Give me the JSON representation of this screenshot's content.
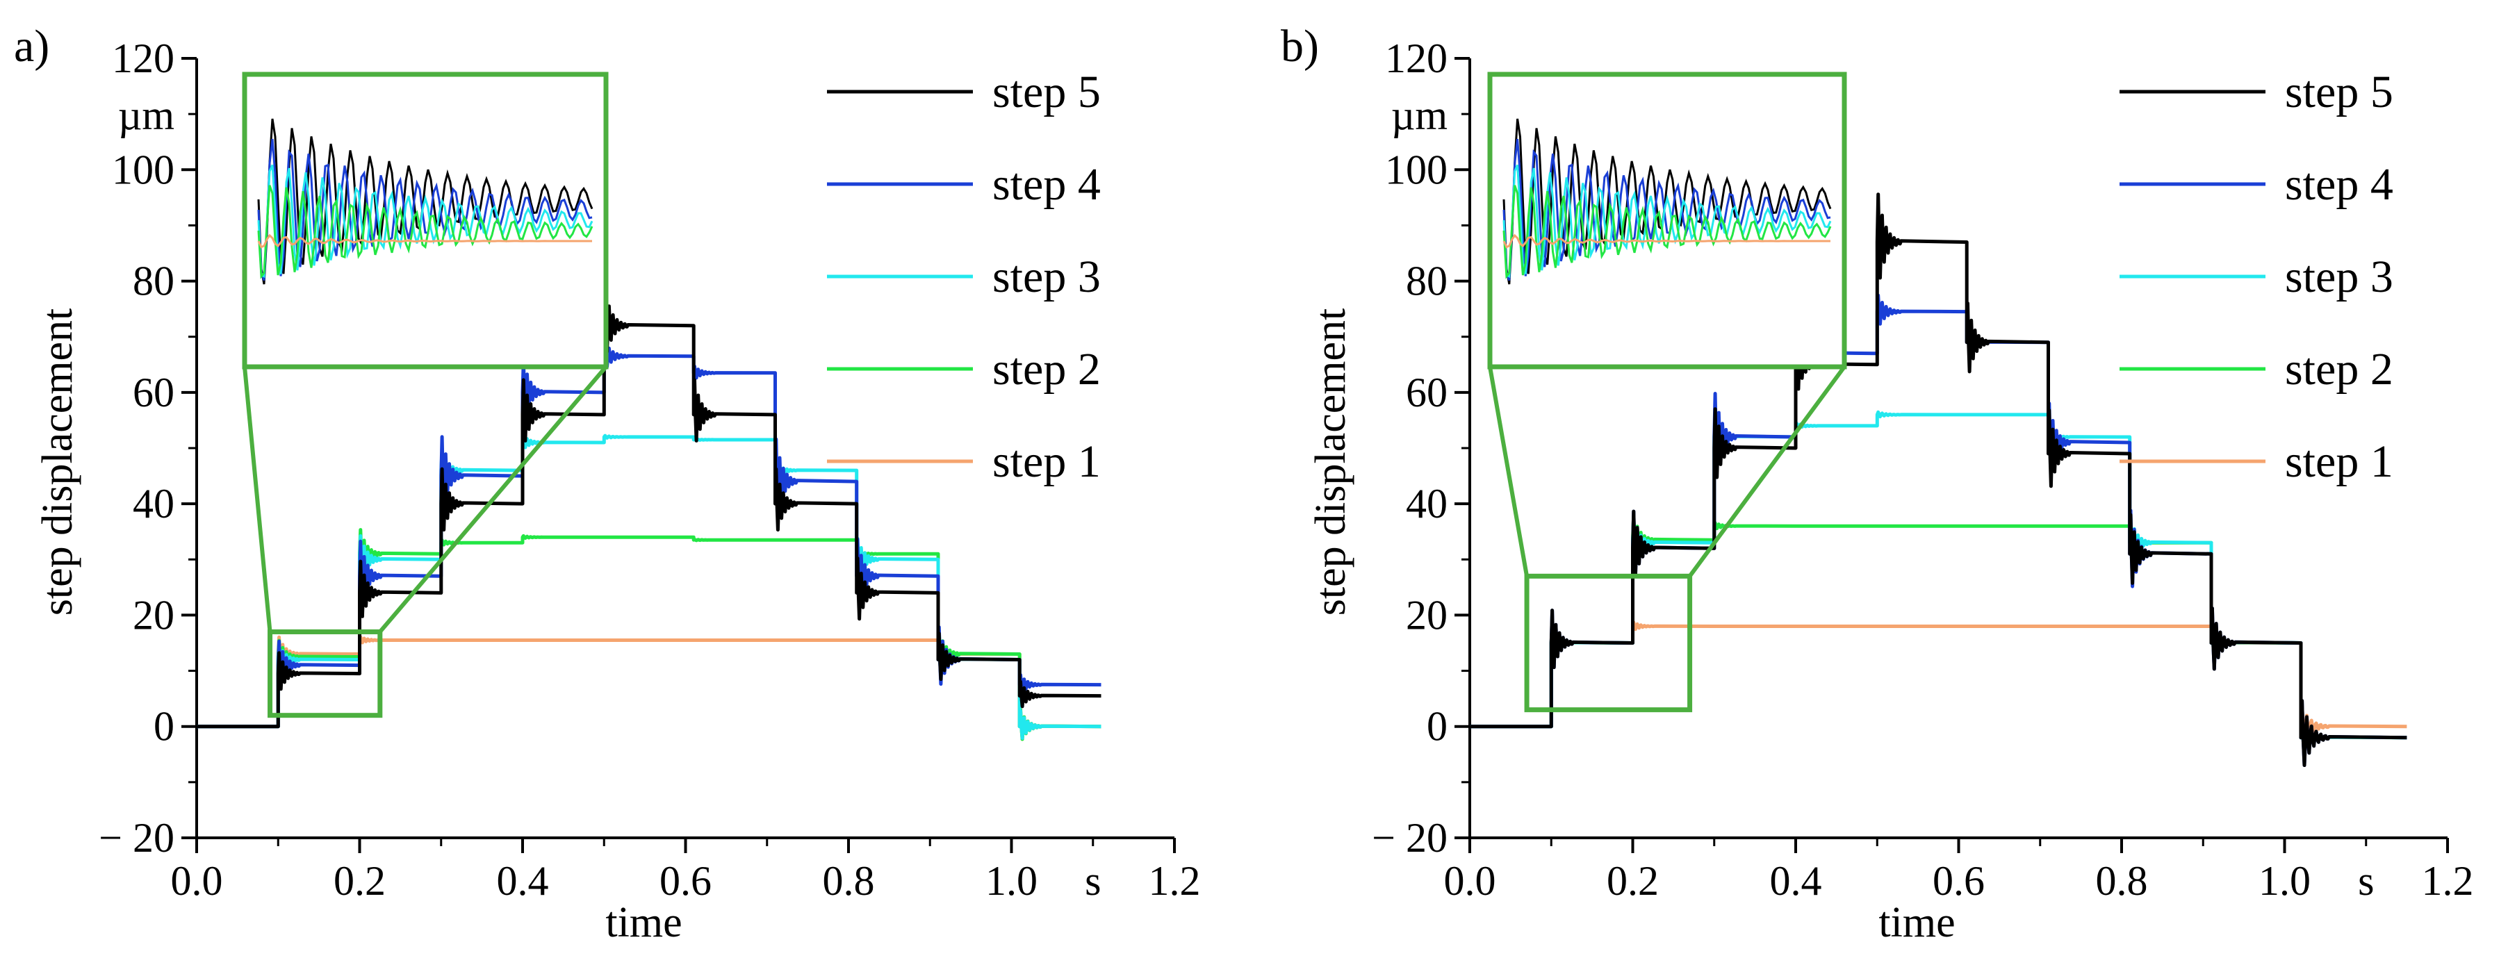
{
  "chart_data": [
    {
      "panel_label": "a)",
      "type": "line",
      "xlabel": "time",
      "ylabel": "step displacement",
      "x_unit": "s",
      "y_unit": "µm",
      "xlim": [
        0,
        1.2
      ],
      "ylim": [
        -20,
        120
      ],
      "x_ticks": [
        "0.0",
        "0.2",
        "0.4",
        "0.6",
        "0.8",
        "1.0",
        "1.2"
      ],
      "y_ticks": [
        "− 20",
        "0",
        "20",
        "40",
        "60",
        "80",
        "100",
        "120"
      ],
      "legend_position": "top-right",
      "inset": {
        "description_zoom_of": "step response around t = 0.1–0.22 s",
        "box_x": [
          0.09,
          0.225
        ],
        "box_y": [
          2,
          17
        ]
      },
      "series": [
        {
          "name": "step 5",
          "color": "#000000",
          "x": [
            0,
            0.1,
            0.1,
            0.2,
            0.2,
            0.3,
            0.3,
            0.4,
            0.4,
            0.5,
            0.5,
            0.61,
            0.61,
            0.71,
            0.71,
            0.81,
            0.81,
            0.91,
            0.91,
            1.01,
            1.01,
            1.11
          ],
          "y": [
            0,
            0,
            9.5,
            9.5,
            24,
            24,
            40,
            40,
            56,
            56,
            72,
            72,
            56,
            56,
            40,
            40,
            24,
            24,
            12,
            12,
            5.5,
            5.5
          ]
        },
        {
          "name": "step 4",
          "color": "#1a3fd6",
          "x": [
            0,
            0.1,
            0.1,
            0.2,
            0.2,
            0.3,
            0.3,
            0.4,
            0.4,
            0.5,
            0.5,
            0.61,
            0.61,
            0.71,
            0.71,
            0.81,
            0.81,
            0.91,
            0.91,
            1.01,
            1.01,
            1.11
          ],
          "y": [
            0,
            0,
            11,
            11,
            27,
            27,
            45,
            45,
            60,
            60,
            66.5,
            66.5,
            63.5,
            63.5,
            44,
            44,
            27,
            27,
            12,
            12,
            7.5,
            7.5
          ]
        },
        {
          "name": "step 3",
          "color": "#22e8ee",
          "x": [
            0,
            0.1,
            0.1,
            0.2,
            0.2,
            0.3,
            0.3,
            0.4,
            0.4,
            0.5,
            0.5,
            0.61,
            0.61,
            0.71,
            0.71,
            0.81,
            0.81,
            0.91,
            0.91,
            1.01,
            1.01,
            1.11
          ],
          "y": [
            0,
            0,
            12,
            12,
            30,
            30,
            46,
            46,
            51,
            51,
            52,
            52,
            51.5,
            51.5,
            46,
            46,
            30,
            30,
            12,
            12,
            0,
            0
          ]
        },
        {
          "name": "step 2",
          "color": "#22e644",
          "x": [
            0,
            0.1,
            0.1,
            0.2,
            0.2,
            0.3,
            0.3,
            0.4,
            0.4,
            0.5,
            0.5,
            0.61,
            0.61,
            0.71,
            0.71,
            0.81,
            0.81,
            0.91,
            0.91,
            1.01,
            1.01,
            1.11
          ],
          "y": [
            0,
            0,
            12.5,
            12.5,
            31,
            31,
            33,
            33,
            34,
            34,
            34,
            34,
            33.5,
            33.5,
            33.5,
            33.5,
            31,
            31,
            13,
            13,
            0,
            0
          ]
        },
        {
          "name": "step 1",
          "color": "#f5a46e",
          "x": [
            0,
            0.1,
            0.1,
            0.2,
            0.2,
            0.3,
            0.3,
            0.4,
            0.4,
            0.5,
            0.5,
            0.61,
            0.61,
            0.71,
            0.71,
            0.81,
            0.81,
            0.91,
            0.91,
            1.01,
            1.01,
            1.11
          ],
          "y": [
            0,
            0,
            13,
            13,
            15.5,
            15.5,
            15.5,
            15.5,
            15.5,
            15.5,
            15.5,
            15.5,
            15.5,
            15.5,
            15.5,
            15.5,
            15.5,
            15.5,
            13,
            13,
            0,
            0
          ]
        }
      ]
    },
    {
      "panel_label": "b)",
      "type": "line",
      "xlabel": "time",
      "ylabel": "step displacement",
      "x_unit": "s",
      "y_unit": "µm",
      "xlim": [
        0,
        1.2
      ],
      "ylim": [
        -20,
        120
      ],
      "x_ticks": [
        "0.0",
        "0.2",
        "0.4",
        "0.6",
        "0.8",
        "1.0",
        "1.2"
      ],
      "y_ticks": [
        "− 20",
        "0",
        "20",
        "40",
        "60",
        "80",
        "100",
        "120"
      ],
      "legend_position": "top-right",
      "inset": {
        "description_zoom_of": "step response around t = 0.07–0.27 s",
        "box_x": [
          0.07,
          0.27
        ],
        "box_y": [
          3,
          27
        ]
      },
      "series": [
        {
          "name": "step 5",
          "color": "#000000",
          "x": [
            0,
            0.1,
            0.1,
            0.2,
            0.2,
            0.3,
            0.3,
            0.4,
            0.4,
            0.5,
            0.5,
            0.61,
            0.61,
            0.71,
            0.71,
            0.81,
            0.81,
            0.91,
            0.91,
            1.02,
            1.02,
            1.15
          ],
          "y": [
            0,
            0,
            15,
            15,
            32,
            32,
            50,
            50,
            65,
            65,
            87,
            87,
            69,
            69,
            49,
            49,
            31,
            31,
            15,
            15,
            -2,
            -2
          ]
        },
        {
          "name": "step 4",
          "color": "#1a3fd6",
          "x": [
            0,
            0.1,
            0.1,
            0.2,
            0.2,
            0.3,
            0.3,
            0.4,
            0.4,
            0.5,
            0.5,
            0.61,
            0.61,
            0.71,
            0.71,
            0.81,
            0.81,
            0.91,
            0.91,
            1.02,
            1.02,
            1.15
          ],
          "y": [
            0,
            0,
            15,
            15,
            32,
            32,
            52,
            52,
            67,
            67,
            74.5,
            74.5,
            69,
            69,
            51,
            51,
            31,
            31,
            15,
            15,
            -2,
            -2
          ]
        },
        {
          "name": "step 3",
          "color": "#22e8ee",
          "x": [
            0,
            0.1,
            0.1,
            0.2,
            0.2,
            0.3,
            0.3,
            0.4,
            0.4,
            0.5,
            0.5,
            0.61,
            0.61,
            0.71,
            0.71,
            0.81,
            0.81,
            0.91,
            0.91,
            1.02,
            1.02,
            1.15
          ],
          "y": [
            0,
            0,
            15,
            15,
            33,
            33,
            52,
            52,
            54,
            54,
            56,
            56,
            56,
            56,
            52,
            52,
            33,
            33,
            15,
            15,
            -2,
            -2
          ]
        },
        {
          "name": "step 2",
          "color": "#22e644",
          "x": [
            0,
            0.1,
            0.1,
            0.2,
            0.2,
            0.3,
            0.3,
            0.4,
            0.4,
            0.5,
            0.5,
            0.61,
            0.61,
            0.71,
            0.71,
            0.81,
            0.81,
            0.91,
            0.91,
            1.02,
            1.02,
            1.15
          ],
          "y": [
            0,
            0,
            15,
            15,
            33.5,
            33.5,
            36,
            36,
            36,
            36,
            36,
            36,
            36,
            36,
            36,
            36,
            33,
            33,
            15,
            15,
            -2,
            -2
          ]
        },
        {
          "name": "step 1",
          "color": "#f5a46e",
          "x": [
            0,
            0.1,
            0.1,
            0.2,
            0.2,
            0.3,
            0.3,
            0.4,
            0.4,
            0.5,
            0.5,
            0.61,
            0.61,
            0.71,
            0.71,
            0.81,
            0.81,
            0.91,
            0.91,
            1.02,
            1.02,
            1.15
          ],
          "y": [
            0,
            0,
            15,
            15,
            18,
            18,
            18,
            18,
            18,
            18,
            18,
            18,
            18,
            18,
            18,
            18,
            18,
            18,
            15,
            15,
            0,
            0
          ]
        }
      ]
    }
  ]
}
